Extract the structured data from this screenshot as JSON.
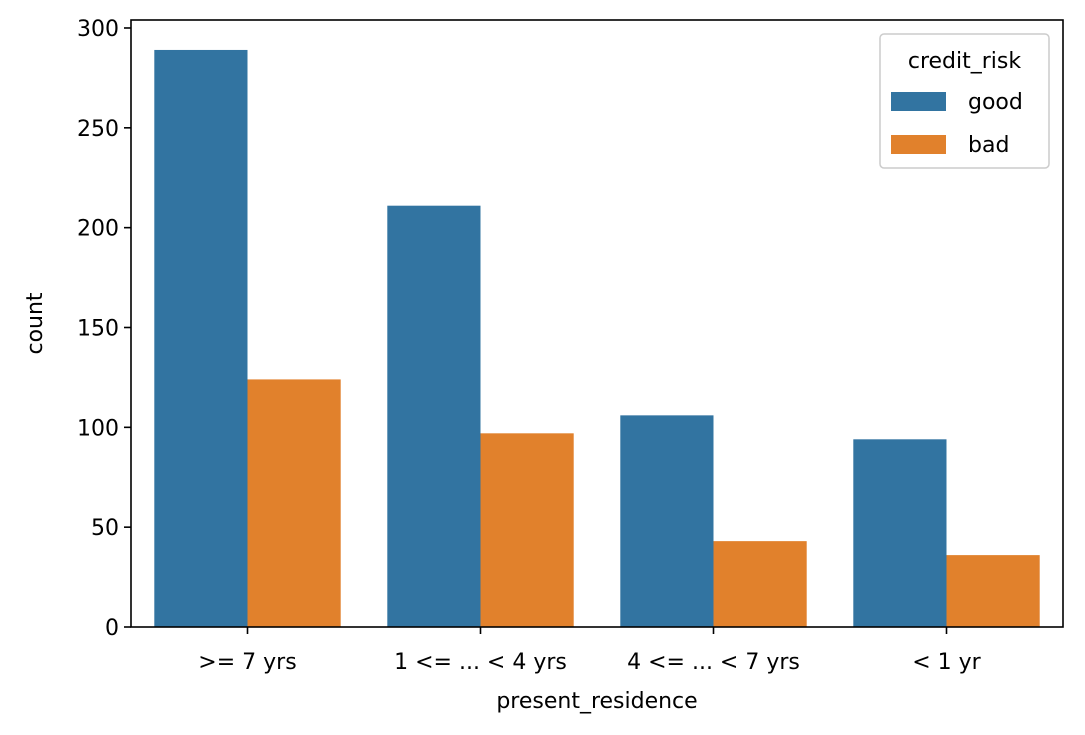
{
  "chart_data": {
    "type": "bar",
    "title": "",
    "xlabel": "present_residence",
    "ylabel": "count",
    "categories": [
      ">= 7 yrs",
      "1 <= ... < 4 yrs",
      "4 <= ... < 7 yrs",
      "< 1 yr"
    ],
    "series": [
      {
        "name": "good",
        "color": "#3274a1",
        "values": [
          289,
          211,
          106,
          94
        ]
      },
      {
        "name": "bad",
        "color": "#e1812c",
        "values": [
          124,
          97,
          43,
          36
        ]
      }
    ],
    "ylim": [
      0,
      304
    ],
    "yticks": [
      0,
      50,
      100,
      150,
      200,
      250,
      300
    ],
    "grid": false,
    "legend": {
      "title": "credit_risk",
      "placement": "top-right"
    }
  }
}
